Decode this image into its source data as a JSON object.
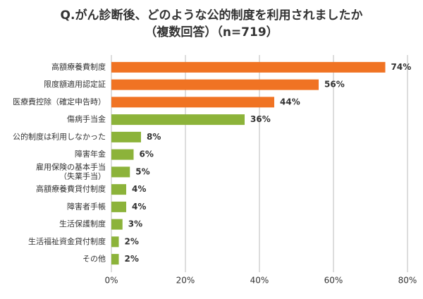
{
  "chart_data": {
    "type": "barh",
    "title": [
      "Q.がん診断後、どのような公的制度を利用されましたか",
      "（複数回答）（n=719）"
    ],
    "categories": [
      "高額療養費制度",
      "限度額適用認定証",
      "医療費控除（確定申告時）",
      "傷病手当金",
      "公的制度は利用しなかった",
      "障害年金",
      "雇用保険の基本手当\n（失業手当）",
      "高額療養費貸付制度",
      "障害者手帳",
      "生活保護制度",
      "生活福祉資金貸付制度",
      "その他"
    ],
    "values": [
      74,
      56,
      44,
      36,
      8,
      6,
      5,
      4,
      4,
      3,
      2,
      2
    ],
    "value_labels": [
      "74%",
      "56%",
      "44%",
      "36%",
      "8%",
      "6%",
      "5%",
      "4%",
      "4%",
      "3%",
      "2%",
      "2%"
    ],
    "colors": [
      "#f07323",
      "#f07323",
      "#f07323",
      "#8cb33a",
      "#8cb33a",
      "#8cb33a",
      "#8cb33a",
      "#8cb33a",
      "#8cb33a",
      "#8cb33a",
      "#8cb33a",
      "#8cb33a"
    ],
    "label_colors": [
      "#d4481a",
      "#d4481a",
      "#d4481a",
      "#333333",
      "#333333",
      "#333333",
      "#333333",
      "#333333",
      "#333333",
      "#333333",
      "#333333",
      "#333333"
    ],
    "xlim": [
      0,
      80
    ],
    "xticks": [
      {
        "value": 0,
        "label": "0%"
      },
      {
        "value": 20,
        "label": "20%"
      },
      {
        "value": 40,
        "label": "40%"
      },
      {
        "value": 60,
        "label": "60%"
      },
      {
        "value": 80,
        "label": "80%"
      }
    ],
    "grid": true
  }
}
